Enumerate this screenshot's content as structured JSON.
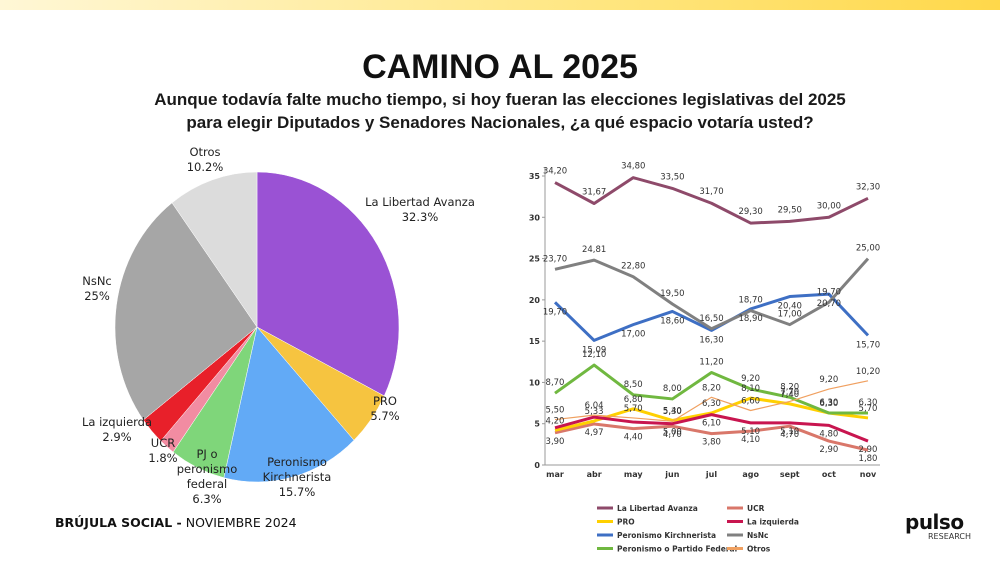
{
  "header": {
    "title": "CAMINO AL 2025",
    "subtitle": [
      "Aunque todavía falte mucho tiempo, si hoy fueran las elecciones legislativas del 2025",
      "para elegir Diputados y Senadores Nacionales, ¿a qué espacio votaría usted?"
    ]
  },
  "chart_data": [
    {
      "type": "pie",
      "labels": [
        "La Libertad Avanza",
        "PRO",
        "Peronismo Kirchnerista",
        "PJ o peronismo federal",
        "UCR",
        "La izquierda",
        "NsNc",
        "Otros"
      ],
      "values": [
        32.3,
        5.7,
        15.7,
        6.3,
        1.8,
        2.9,
        25,
        10.2
      ],
      "value_labels": [
        "32.3%",
        "5.7%",
        "15.7%",
        "6.3%",
        "1.8%",
        "2.9%",
        "25%",
        "10.2%"
      ],
      "colors": [
        "#9a52d4",
        "#f6c440",
        "#62aaf6",
        "#7fd67a",
        "#f28ca2",
        "#e8202a",
        "#a6a6a6",
        "#dcdcdc"
      ]
    },
    {
      "type": "line",
      "categories": [
        "mar",
        "abr",
        "may",
        "jun",
        "jul",
        "ago",
        "sept",
        "oct",
        "nov"
      ],
      "ylim": [
        0,
        36
      ],
      "yticks": [
        0,
        5,
        10,
        15,
        20,
        25,
        30,
        35
      ],
      "series": [
        {
          "name": "La Libertad Avanza",
          "color": "#8e4a6a",
          "values": [
            34.2,
            31.67,
            34.8,
            33.5,
            31.7,
            29.3,
            29.5,
            30,
            32.3
          ],
          "value_labels": [
            "34,20",
            "31,67",
            "34,80",
            "33,50",
            "31,70",
            "29,30",
            "29,50",
            "30,00",
            "32,30"
          ]
        },
        {
          "name": "UCR",
          "color": "#d9776a",
          "values": [
            3.9,
            4.97,
            4.4,
            4.7,
            3.8,
            4.1,
            4.7,
            2.9,
            1.8
          ],
          "value_labels": [
            "3,90",
            "4,97",
            "4,40",
            "4,70",
            "3,80",
            "4,10",
            "4,70",
            "2,90",
            "1,80"
          ]
        },
        {
          "name": "PRO",
          "color": "#ffd000",
          "values": [
            4.2,
            5.33,
            6.8,
            5.4,
            6.3,
            8.1,
            7.4,
            6.3,
            5.7
          ],
          "value_labels": [
            "4,20",
            "5,33",
            "6,80",
            "5,40",
            "6,30",
            "8,10",
            "7,40",
            "6,30",
            "5,70"
          ]
        },
        {
          "name": "La izquierda",
          "color": "#c8154f",
          "values": [
            4.5,
            5.8,
            5.2,
            5,
            6.1,
            5.1,
            5.1,
            4.8,
            2.9
          ],
          "value_labels": [
            null,
            null,
            null,
            "5,00",
            "6,10",
            "5,10",
            "5,10",
            "4,80",
            "2,90"
          ]
        },
        {
          "name": "Peronismo Kirchnerista",
          "color": "#3e6fc4",
          "values": [
            19.7,
            15.09,
            17,
            18.6,
            16.3,
            18.9,
            20.4,
            20.7,
            15.7
          ],
          "value_labels": [
            "19,70",
            "15,09",
            "17,00",
            "18,60",
            "16,30",
            "18,90",
            "20,40",
            "20,70",
            "15,70"
          ]
        },
        {
          "name": "NsNc",
          "color": "#808080",
          "values": [
            23.7,
            24.81,
            22.8,
            19.5,
            16.5,
            18.7,
            17,
            19.7,
            25
          ],
          "value_labels": [
            "23,70",
            "24,81",
            "22,80",
            "19,50",
            "16,50",
            "18,70",
            "17,00",
            "19,70",
            "25,00"
          ]
        },
        {
          "name": "Peronismo o Partido Federal",
          "color": "#70b840",
          "values": [
            8.7,
            12.1,
            8.5,
            8,
            11.2,
            9.2,
            8.2,
            6.3,
            6.3
          ],
          "value_labels": [
            "8,70",
            "12,10",
            "8,50",
            "8,00",
            "11,20",
            "9,20",
            "8,20",
            "6,30",
            "6,30"
          ]
        },
        {
          "name": "Otros",
          "color": "#f0a060",
          "values": [
            5.5,
            6.04,
            5.7,
            5.3,
            8.2,
            6.6,
            7.7,
            9.2,
            10.2
          ],
          "value_labels": [
            "5,50",
            "6,04",
            "5,70",
            "5,30",
            "8,20",
            "6,60",
            "7,70",
            "9,20",
            "10,20"
          ]
        }
      ]
    }
  ],
  "footer": {
    "source_bold": "BRÚJULA SOCIAL -",
    "source_date": "NOVIEMBRE 2024",
    "logo": "pulso",
    "logo_sub": "RESEARCH"
  }
}
